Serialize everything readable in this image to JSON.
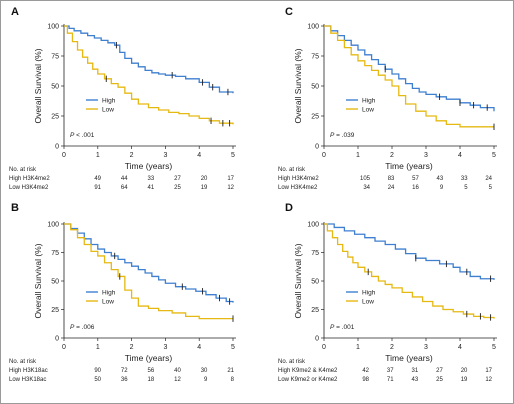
{
  "colors": {
    "high": "#3f7fd0",
    "low": "#e6b912",
    "axis": "#222222"
  },
  "chart_data": [
    {
      "type": "line",
      "panel": "A",
      "xlabel": "Time (years)",
      "ylabel": "Overall Survival (%)",
      "xlim": [
        0,
        5
      ],
      "ylim": [
        0,
        100
      ],
      "xticks": [
        "0",
        "1",
        "2",
        "3",
        "4",
        "5"
      ],
      "yticks": [
        "0",
        "25",
        "50",
        "75",
        "100"
      ],
      "legend": [
        "High",
        "Low"
      ],
      "pvalue_prefix": "P",
      "pvalue_text": " < .001",
      "series": [
        {
          "name": "High",
          "color": "#3f7fd0",
          "x": [
            0,
            0.15,
            0.3,
            0.5,
            0.7,
            0.9,
            1.1,
            1.3,
            1.5,
            1.65,
            1.8,
            2.0,
            2.2,
            2.4,
            2.6,
            2.8,
            3.0,
            3.3,
            3.6,
            4.0,
            4.3,
            4.6,
            5.0
          ],
          "y": [
            100,
            98,
            96,
            94,
            92,
            90,
            88,
            86,
            84,
            78,
            73,
            69,
            66,
            63,
            61,
            60,
            59,
            58,
            56,
            53,
            49,
            45,
            44
          ],
          "censor_x": [
            1.55,
            3.2,
            4.1,
            4.4,
            4.85
          ]
        },
        {
          "name": "Low",
          "color": "#e6b912",
          "x": [
            0,
            0.1,
            0.25,
            0.4,
            0.55,
            0.7,
            0.85,
            1.0,
            1.2,
            1.4,
            1.6,
            1.8,
            2.0,
            2.2,
            2.5,
            2.8,
            3.1,
            3.4,
            3.7,
            4.0,
            4.3,
            4.6,
            5.0
          ],
          "y": [
            100,
            94,
            87,
            80,
            74,
            69,
            64,
            60,
            56,
            52,
            49,
            44,
            39,
            35,
            32,
            30,
            28,
            27,
            25,
            23,
            21,
            19,
            18
          ],
          "censor_x": [
            1.25,
            4.35,
            4.7,
            4.9
          ]
        }
      ],
      "risk_table": {
        "header": "No. at risk",
        "rows": [
          {
            "label": "High H3K4me2",
            "values": [
              "49",
              "44",
              "33",
              "27",
              "20",
              "17"
            ]
          },
          {
            "label": "Low H3K4me2",
            "values": [
              "91",
              "64",
              "41",
              "25",
              "19",
              "12"
            ]
          }
        ]
      }
    },
    {
      "type": "line",
      "panel": "B",
      "xlabel": "Time (years)",
      "ylabel": "Overall Survival (%)",
      "xlim": [
        0,
        5
      ],
      "ylim": [
        0,
        100
      ],
      "xticks": [
        "0",
        "1",
        "2",
        "3",
        "4",
        "5"
      ],
      "yticks": [
        "0",
        "25",
        "50",
        "75",
        "100"
      ],
      "legend": [
        "High",
        "Low"
      ],
      "pvalue_prefix": "P",
      "pvalue_text": " = .006",
      "series": [
        {
          "name": "High",
          "color": "#3f7fd0",
          "x": [
            0,
            0.2,
            0.4,
            0.6,
            0.8,
            1.0,
            1.2,
            1.4,
            1.6,
            1.8,
            2.0,
            2.2,
            2.4,
            2.6,
            2.8,
            3.0,
            3.3,
            3.6,
            3.9,
            4.2,
            4.5,
            4.8,
            5.0
          ],
          "y": [
            100,
            96,
            92,
            87,
            82,
            78,
            75,
            72,
            69,
            66,
            63,
            60,
            57,
            54,
            51,
            48,
            45,
            43,
            41,
            38,
            35,
            32,
            31
          ],
          "censor_x": [
            1.5,
            3.5,
            4.1,
            4.6,
            4.9
          ]
        },
        {
          "name": "Low",
          "color": "#e6b912",
          "x": [
            0,
            0.2,
            0.4,
            0.6,
            0.8,
            1.0,
            1.2,
            1.4,
            1.6,
            1.8,
            2.0,
            2.2,
            2.5,
            2.8,
            3.2,
            3.6,
            4.0,
            4.5,
            5.0
          ],
          "y": [
            100,
            95,
            88,
            82,
            76,
            72,
            66,
            60,
            54,
            42,
            35,
            28,
            26,
            24,
            22,
            19,
            17,
            17,
            17
          ],
          "censor_x": [
            1.65,
            5.0
          ]
        }
      ],
      "risk_table": {
        "header": "No. at risk",
        "rows": [
          {
            "label": "High H3K18ac",
            "values": [
              "90",
              "72",
              "56",
              "40",
              "30",
              "21"
            ]
          },
          {
            "label": "Low H3K18ac",
            "values": [
              "50",
              "36",
              "18",
              "12",
              "9",
              "8"
            ]
          }
        ]
      }
    },
    {
      "type": "line",
      "panel": "C",
      "xlabel": "Time (years)",
      "ylabel": "Overall Survival (%)",
      "xlim": [
        0,
        5
      ],
      "ylim": [
        0,
        100
      ],
      "xticks": [
        "0",
        "1",
        "2",
        "3",
        "4",
        "5"
      ],
      "yticks": [
        "0",
        "25",
        "50",
        "75",
        "100"
      ],
      "legend": [
        "High",
        "Low"
      ],
      "pvalue_prefix": "P",
      "pvalue_text": " = .039",
      "series": [
        {
          "name": "High",
          "color": "#3f7fd0",
          "x": [
            0,
            0.2,
            0.4,
            0.6,
            0.8,
            1.0,
            1.2,
            1.4,
            1.6,
            1.8,
            2.0,
            2.2,
            2.4,
            2.6,
            2.8,
            3.0,
            3.3,
            3.6,
            4.0,
            4.3,
            4.6,
            5.0
          ],
          "y": [
            100,
            96,
            92,
            88,
            84,
            80,
            76,
            72,
            68,
            64,
            60,
            56,
            52,
            48,
            45,
            43,
            41,
            39,
            36,
            34,
            32,
            29
          ],
          "censor_x": [
            1.8,
            3.4,
            4.0,
            4.4,
            4.8
          ]
        },
        {
          "name": "Low",
          "color": "#e6b912",
          "x": [
            0,
            0.2,
            0.4,
            0.6,
            0.8,
            1.0,
            1.2,
            1.4,
            1.6,
            1.8,
            2.0,
            2.2,
            2.4,
            2.7,
            3.0,
            3.3,
            3.6,
            4.0,
            4.5,
            5.0
          ],
          "y": [
            100,
            94,
            88,
            82,
            76,
            71,
            67,
            63,
            59,
            55,
            50,
            42,
            35,
            29,
            25,
            21,
            18,
            16,
            16,
            16
          ],
          "censor_x": [
            5.0
          ]
        }
      ],
      "risk_table": {
        "header": "No. at risk",
        "rows": [
          {
            "label": "High H3K4me2",
            "values": [
              "105",
              "83",
              "57",
              "43",
              "33",
              "24"
            ]
          },
          {
            "label": "Low H3K4me2",
            "values": [
              "34",
              "24",
              "16",
              "9",
              "5",
              "5"
            ]
          }
        ]
      }
    },
    {
      "type": "line",
      "panel": "D",
      "xlabel": "Time (years)",
      "ylabel": "Overall Survival (%)",
      "xlim": [
        0,
        5
      ],
      "ylim": [
        0,
        100
      ],
      "xticks": [
        "0",
        "1",
        "2",
        "3",
        "4",
        "5"
      ],
      "yticks": [
        "0",
        "25",
        "50",
        "75",
        "100"
      ],
      "legend": [
        "High",
        "Low"
      ],
      "pvalue_prefix": "P",
      "pvalue_text": " = .001",
      "series": [
        {
          "name": "High",
          "color": "#3f7fd0",
          "x": [
            0,
            0.3,
            0.6,
            0.9,
            1.2,
            1.5,
            1.8,
            2.1,
            2.4,
            2.7,
            3.0,
            3.4,
            3.8,
            4.0,
            4.3,
            4.6,
            5.0
          ],
          "y": [
            100,
            97,
            94,
            91,
            88,
            85,
            82,
            78,
            74,
            70,
            68,
            65,
            62,
            58,
            54,
            52,
            51
          ],
          "censor_x": [
            2.7,
            3.6,
            4.2,
            4.9
          ]
        },
        {
          "name": "Low",
          "color": "#e6b912",
          "x": [
            0,
            0.1,
            0.25,
            0.4,
            0.55,
            0.7,
            0.85,
            1.0,
            1.2,
            1.4,
            1.6,
            1.8,
            2.0,
            2.3,
            2.6,
            2.9,
            3.2,
            3.5,
            3.8,
            4.1,
            4.4,
            4.7,
            5.0
          ],
          "y": [
            100,
            94,
            88,
            82,
            76,
            71,
            66,
            62,
            58,
            54,
            50,
            47,
            44,
            40,
            36,
            32,
            28,
            25,
            23,
            21,
            19,
            18,
            17
          ],
          "censor_x": [
            1.3,
            4.2,
            4.6,
            4.9
          ]
        }
      ],
      "risk_table": {
        "header": "No. at risk",
        "rows": [
          {
            "label": "High K9me2 & K4me2",
            "values": [
              "42",
              "37",
              "31",
              "27",
              "20",
              "17"
            ]
          },
          {
            "label": "Low K9me2 or K4me2",
            "values": [
              "98",
              "71",
              "43",
              "25",
              "19",
              "12"
            ]
          }
        ]
      }
    }
  ]
}
